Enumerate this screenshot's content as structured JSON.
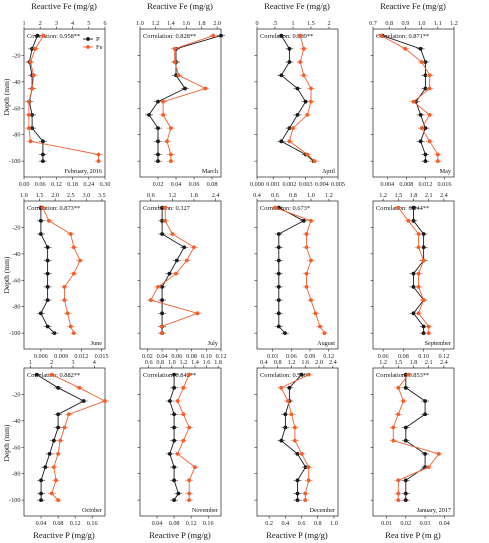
{
  "chart_data": {
    "type": "line",
    "layout": "grid 4 columns x 3 rows",
    "top_axis_title": "Reactive Fe (mg/g)",
    "bottom_axis_title": "Reactive P (mg/g)",
    "last_bottom_axis_title": "Rea tive P (m g)",
    "depth_label": "Depth (mm)",
    "depth_ticks": [
      -20,
      -40,
      -60,
      -80,
      -100
    ],
    "ylim": [
      -112,
      0
    ],
    "legend": [
      {
        "name": "P",
        "color": "#1a1a1a",
        "marker": "circle"
      },
      {
        "name": "Fe",
        "color": "#f0602f",
        "marker": "circle"
      }
    ],
    "panels": [
      {
        "month": "February, 2016",
        "correlation": "Correlation: 0.958**",
        "fe_ticks": [
          "1",
          "2",
          "3",
          "4",
          "5",
          "6"
        ],
        "fe_range": [
          1,
          6
        ],
        "p_ticks": [
          "0.00",
          "0.06",
          "0.12",
          "0.18",
          "0.24",
          "0.30"
        ],
        "p_range": [
          0,
          0.3
        ],
        "depth": [
          -5,
          -15,
          -25,
          -35,
          -45,
          -55,
          -65,
          -75,
          -85,
          -95,
          -100
        ],
        "P": [
          0.05,
          0.03,
          0.02,
          0.03,
          0.03,
          0.02,
          0.03,
          0.03,
          0.07,
          0.07,
          0.07
        ],
        "Fe": [
          2.2,
          1.7,
          1.4,
          1.6,
          1.5,
          1.3,
          1.3,
          1.3,
          1.4,
          5.6,
          5.6
        ]
      },
      {
        "month": "March",
        "correlation": "Correlation: 0.828**",
        "fe_ticks": [
          "1.0",
          "1.2",
          "1.4",
          "1.6",
          "1.8",
          "2.0"
        ],
        "fe_range": [
          1.0,
          2.05
        ],
        "p_ticks": [
          "0.02",
          "0.04",
          "0.06",
          "0.08"
        ],
        "p_range": [
          0,
          0.09
        ],
        "depth": [
          -5,
          -15,
          -25,
          -35,
          -45,
          -55,
          -65,
          -75,
          -85,
          -95,
          -100
        ],
        "P": [
          0.09,
          0.04,
          0.04,
          0.04,
          0.05,
          0.02,
          0.01,
          0.02,
          0.02,
          0.02,
          0.02
        ],
        "Fe": [
          1.95,
          1.45,
          1.45,
          1.5,
          1.85,
          1.3,
          1.3,
          1.4,
          1.35,
          1.4,
          1.4
        ]
      },
      {
        "month": "April",
        "correlation": "Correlation: 0.889**",
        "fe_ticks": [
          "0",
          ".5",
          "1",
          "1.5",
          "2"
        ],
        "fe_range": [
          0,
          2.25
        ],
        "p_ticks": [
          "0.000",
          "0.001",
          "0.002",
          "0.003",
          "0.004",
          "0.005"
        ],
        "p_range": [
          0,
          0.005
        ],
        "depth": [
          -5,
          -15,
          -25,
          -35,
          -45,
          -55,
          -65,
          -75,
          -85,
          -95,
          -100
        ],
        "P": [
          0.0015,
          0.002,
          0.002,
          0.0015,
          0.0025,
          0.003,
          0.0025,
          0.002,
          0.0015,
          0.003,
          0.0035
        ],
        "Fe": [
          1.2,
          1.3,
          1.2,
          1.3,
          1.5,
          1.5,
          1.4,
          1.0,
          0.9,
          1.4,
          1.6
        ]
      },
      {
        "month": "May",
        "correlation": "Correlation: 0.871**",
        "fe_ticks": [
          "0.7",
          "0.8",
          "0.9",
          "1.0",
          "1.1",
          "1.2"
        ],
        "fe_range": [
          0.7,
          1.2
        ],
        "p_ticks": [
          "0.004",
          "0.008",
          "0.012",
          "0.016"
        ],
        "p_range": [
          0.001,
          0.018
        ],
        "depth": [
          -5,
          -15,
          -25,
          -35,
          -45,
          -55,
          -65,
          -75,
          -85,
          -95,
          -100
        ],
        "P": [
          0.003,
          0.011,
          0.012,
          0.012,
          0.012,
          0.01,
          0.011,
          0.012,
          0.011,
          0.012,
          0.012
        ],
        "Fe": [
          0.75,
          0.9,
          1.0,
          1.05,
          1.05,
          0.95,
          1.05,
          1.0,
          1.05,
          1.1,
          1.1
        ]
      },
      {
        "month": "June",
        "correlation": "Correlation: 0.873**",
        "fe_ticks": [
          "1.0",
          "1.5",
          "2.0",
          "2.5",
          "3.0",
          "3.5"
        ],
        "fe_range": [
          1.0,
          3.6
        ],
        "p_ticks": [
          "0.006",
          "0.009",
          "0.012",
          "0.015"
        ],
        "p_range": [
          0.0035,
          0.0155
        ],
        "depth": [
          -5,
          -15,
          -25,
          -35,
          -45,
          -55,
          -65,
          -75,
          -85,
          -95,
          -100
        ],
        "P": [
          0.006,
          0.006,
          0.006,
          0.007,
          0.007,
          0.007,
          0.007,
          0.007,
          0.006,
          0.007,
          0.008
        ],
        "Fe": [
          1.6,
          1.8,
          2.5,
          2.6,
          2.8,
          2.6,
          2.3,
          2.3,
          2.4,
          2.5,
          2.6
        ]
      },
      {
        "month": "July",
        "correlation": "Correlation: 0.327",
        "fe_ticks": [
          "0.6",
          "1.2",
          "1.8",
          "2.4"
        ],
        "fe_range": [
          0.3,
          2.55
        ],
        "p_ticks": [
          "0.02",
          "0.04",
          "0.06",
          "0.08",
          "0.10",
          "0.12"
        ],
        "p_range": [
          0.01,
          0.12
        ],
        "depth": [
          -5,
          -15,
          -25,
          -35,
          -45,
          -55,
          -65,
          -75,
          -85,
          -95,
          -100
        ],
        "P": [
          0.04,
          0.04,
          0.04,
          0.07,
          0.06,
          0.05,
          0.04,
          0.04,
          0.04,
          0.04,
          0.04
        ],
        "Fe": [
          1.0,
          1.0,
          1.2,
          1.8,
          1.6,
          1.3,
          0.8,
          0.6,
          1.9,
          0.9,
          0.9
        ]
      },
      {
        "month": "August",
        "correlation": "Correlation: 0.673*",
        "fe_ticks": [
          "0.4",
          "0.6",
          "0.8",
          "1.0",
          "1.2"
        ],
        "fe_range": [
          0.4,
          1.3
        ],
        "p_ticks": [
          "0.03",
          "0.06",
          "0.09",
          "0.12"
        ],
        "p_range": [
          0.005,
          0.135
        ],
        "depth": [
          -5,
          -15,
          -25,
          -35,
          -45,
          -55,
          -65,
          -75,
          -85,
          -95,
          -100
        ],
        "P": [
          0.04,
          0.08,
          0.04,
          0.04,
          0.04,
          0.04,
          0.04,
          0.04,
          0.04,
          0.04,
          0.05
        ],
        "Fe": [
          0.6,
          1.0,
          0.95,
          0.95,
          1.0,
          0.95,
          0.95,
          1.0,
          1.05,
          1.1,
          1.15
        ]
      },
      {
        "month": "September",
        "correlation": "Correlation: 0.844**",
        "fe_ticks": [
          "1.2",
          "1.5",
          "1.8",
          "2.1",
          "2.4"
        ],
        "fe_range": [
          1.0,
          2.6
        ],
        "p_ticks": [
          "0.06",
          "0.08",
          "0.10",
          "0.12"
        ],
        "p_range": [
          0.05,
          0.13
        ],
        "depth": [
          -5,
          -15,
          -25,
          -35,
          -45,
          -55,
          -65,
          -75,
          -85,
          -95,
          -100
        ],
        "P": [
          0.09,
          0.09,
          0.1,
          0.1,
          0.1,
          0.09,
          0.09,
          0.1,
          0.09,
          0.1,
          0.1
        ],
        "Fe": [
          1.5,
          1.7,
          1.9,
          1.9,
          2.0,
          1.9,
          1.9,
          2.0,
          1.9,
          2.1,
          2.1
        ]
      },
      {
        "month": "October",
        "correlation": "Correlation: 0.882**",
        "fe_ticks": [
          "1",
          "2",
          "3",
          "4"
        ],
        "fe_range": [
          0.7,
          4.5
        ],
        "p_ticks": [
          "0.04",
          "0.08",
          "0.12",
          "0.16"
        ],
        "p_range": [
          0.0,
          0.19
        ],
        "depth": [
          -5,
          -15,
          -25,
          -35,
          -45,
          -55,
          -65,
          -75,
          -85,
          -95,
          -100
        ],
        "P": [
          0.03,
          0.08,
          0.14,
          0.08,
          0.08,
          0.07,
          0.06,
          0.05,
          0.04,
          0.04,
          0.04
        ],
        "Fe": [
          2.0,
          3.3,
          4.5,
          2.8,
          2.6,
          2.4,
          2.3,
          2.1,
          2.2,
          2.0,
          2.3
        ]
      },
      {
        "month": "November",
        "correlation": "Correlation: 0.842**",
        "fe_ticks": [
          "0.6",
          "0.8",
          "1.0",
          "1.2",
          "1.4",
          "1.6",
          "1.8"
        ],
        "fe_range": [
          0.45,
          1.85
        ],
        "p_ticks": [
          "0.04",
          "0.08",
          "0.12",
          "0.16"
        ],
        "p_range": [
          0.0,
          0.19
        ],
        "depth": [
          -5,
          -15,
          -25,
          -35,
          -45,
          -55,
          -65,
          -75,
          -85,
          -95,
          -100
        ],
        "P": [
          0.08,
          0.08,
          0.07,
          0.08,
          0.08,
          0.08,
          0.07,
          0.08,
          0.08,
          0.09,
          0.08
        ],
        "Fe": [
          1.3,
          1.2,
          1.1,
          1.2,
          1.3,
          1.2,
          1.1,
          1.4,
          1.3,
          1.3,
          1.3
        ]
      },
      {
        "month": "December",
        "correlation": "Correlation: 0.540",
        "fe_ticks": [
          "0.4",
          "0.8",
          "1.2",
          "1.6",
          "2.0",
          "2.4"
        ],
        "fe_range": [
          0.2,
          2.55
        ],
        "p_ticks": [
          "0.2",
          "0.4",
          "0.6",
          "0.8",
          "1.0"
        ],
        "p_range": [
          0.05,
          1.05
        ],
        "depth": [
          -5,
          -15,
          -25,
          -35,
          -45,
          -55,
          -65,
          -75,
          -85,
          -95,
          -100
        ],
        "P": [
          0.6,
          0.45,
          0.45,
          0.4,
          0.4,
          0.35,
          0.55,
          0.65,
          0.55,
          0.55,
          0.55
        ],
        "Fe": [
          1.7,
          0.9,
          1.1,
          1.2,
          1.3,
          1.3,
          1.5,
          1.7,
          1.7,
          1.6,
          1.6
        ]
      },
      {
        "month": "January, 2017",
        "correlation": "Correlation: 0.853**",
        "fe_ticks": [
          "1.2",
          "1.5",
          "1.8",
          "2.1",
          "2.4"
        ],
        "fe_range": [
          1.0,
          2.6
        ],
        "p_ticks": [
          "0.01",
          "0.02",
          "0.03",
          "0.04"
        ],
        "p_range": [
          0.003,
          0.045
        ],
        "depth": [
          -5,
          -15,
          -25,
          -35,
          -45,
          -55,
          -65,
          -75,
          -85,
          -95,
          -100
        ],
        "P": [
          0.02,
          0.02,
          0.03,
          0.03,
          0.02,
          0.02,
          0.03,
          0.03,
          0.02,
          0.02,
          0.02
        ],
        "Fe": [
          1.7,
          1.5,
          1.6,
          1.5,
          1.4,
          1.4,
          2.3,
          2.1,
          1.5,
          1.5,
          1.5
        ]
      }
    ]
  }
}
